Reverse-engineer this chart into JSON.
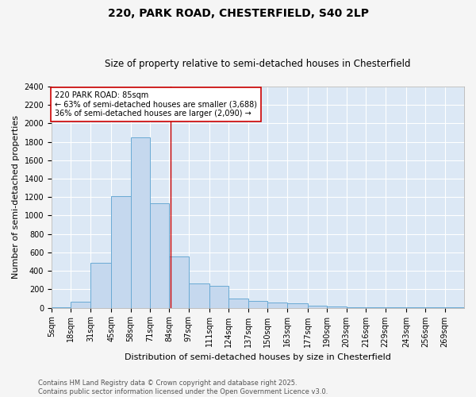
{
  "title1": "220, PARK ROAD, CHESTERFIELD, S40 2LP",
  "title2": "Size of property relative to semi-detached houses in Chesterfield",
  "xlabel": "Distribution of semi-detached houses by size in Chesterfield",
  "ylabel": "Number of semi-detached properties",
  "footnote": "Contains HM Land Registry data © Crown copyright and database right 2025.\nContains public sector information licensed under the Open Government Licence v3.0.",
  "bin_labels": [
    "5sqm",
    "18sqm",
    "31sqm",
    "45sqm",
    "58sqm",
    "71sqm",
    "84sqm",
    "97sqm",
    "111sqm",
    "124sqm",
    "137sqm",
    "150sqm",
    "163sqm",
    "177sqm",
    "190sqm",
    "203sqm",
    "216sqm",
    "229sqm",
    "243sqm",
    "256sqm",
    "269sqm"
  ],
  "bin_edges": [
    5,
    18,
    31,
    45,
    58,
    71,
    84,
    97,
    111,
    124,
    137,
    150,
    163,
    177,
    190,
    203,
    216,
    229,
    243,
    256,
    269,
    282
  ],
  "bar_values": [
    5,
    65,
    490,
    1210,
    1850,
    1130,
    560,
    265,
    240,
    100,
    70,
    55,
    45,
    25,
    10,
    5,
    3,
    2,
    1,
    1,
    1
  ],
  "bar_color": "#c5d8ee",
  "bar_edge_color": "#6aaad4",
  "property_size": 85,
  "vline_color": "#cc0000",
  "annotation_title": "220 PARK ROAD: 85sqm",
  "annotation_line1": "← 63% of semi-detached houses are smaller (3,688)",
  "annotation_line2": "36% of semi-detached houses are larger (2,090) →",
  "annotation_box_color": "#ffffff",
  "annotation_box_edge": "#cc0000",
  "ylim": [
    0,
    2400
  ],
  "yticks": [
    0,
    200,
    400,
    600,
    800,
    1000,
    1200,
    1400,
    1600,
    1800,
    2000,
    2200,
    2400
  ],
  "bg_color": "#dce8f5",
  "grid_color": "#ffffff",
  "fig_bg_color": "#f5f5f5",
  "title1_fontsize": 10,
  "title2_fontsize": 8.5,
  "tick_fontsize": 7,
  "ylabel_fontsize": 8,
  "xlabel_fontsize": 8,
  "annotation_fontsize": 7,
  "footnote_fontsize": 6
}
